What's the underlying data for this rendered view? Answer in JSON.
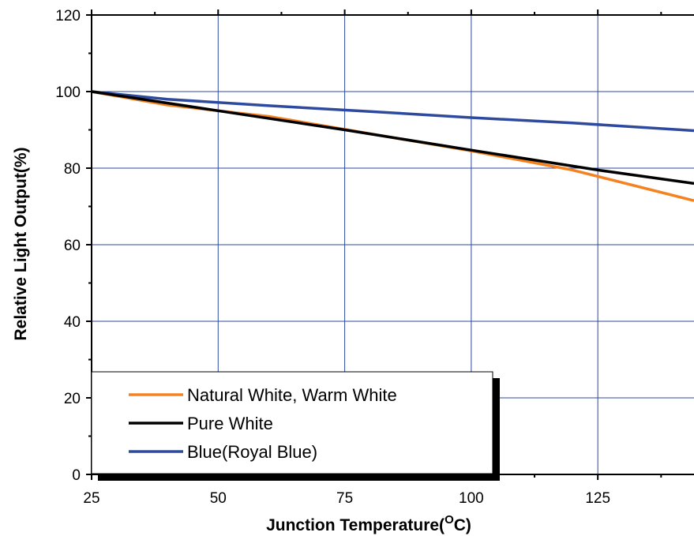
{
  "chart_data": {
    "type": "line",
    "xlabel": "Junction Temperature(",
    "xlabel_sup": "O",
    "xlabel_end": "C)",
    "ylabel": "Relative Light Output(%)",
    "xlim": [
      25,
      144
    ],
    "ylim": [
      0,
      120
    ],
    "x_ticks": [
      25,
      50,
      75,
      100,
      125
    ],
    "y_ticks": [
      0,
      20,
      40,
      60,
      80,
      100,
      120
    ],
    "grid": true,
    "legend_position": "bottom-left",
    "series": [
      {
        "name": "Natural White, Warm White",
        "color": "#f58220",
        "x": [
          25,
          40,
          60,
          80,
          100,
          120,
          144
        ],
        "y": [
          100,
          96.5,
          93.5,
          89,
          84.5,
          79.5,
          71.5
        ]
      },
      {
        "name": "Pure White",
        "color": "#000000",
        "x": [
          25,
          50,
          75,
          100,
          125,
          144
        ],
        "y": [
          100,
          95,
          90,
          84.7,
          79.5,
          76
        ]
      },
      {
        "name": "Blue(Royal Blue)",
        "color": "#2e4a9e",
        "x": [
          25,
          40,
          60,
          80,
          100,
          120,
          144
        ],
        "y": [
          100,
          98,
          96.3,
          94.8,
          93.2,
          91.8,
          89.8
        ]
      }
    ]
  }
}
